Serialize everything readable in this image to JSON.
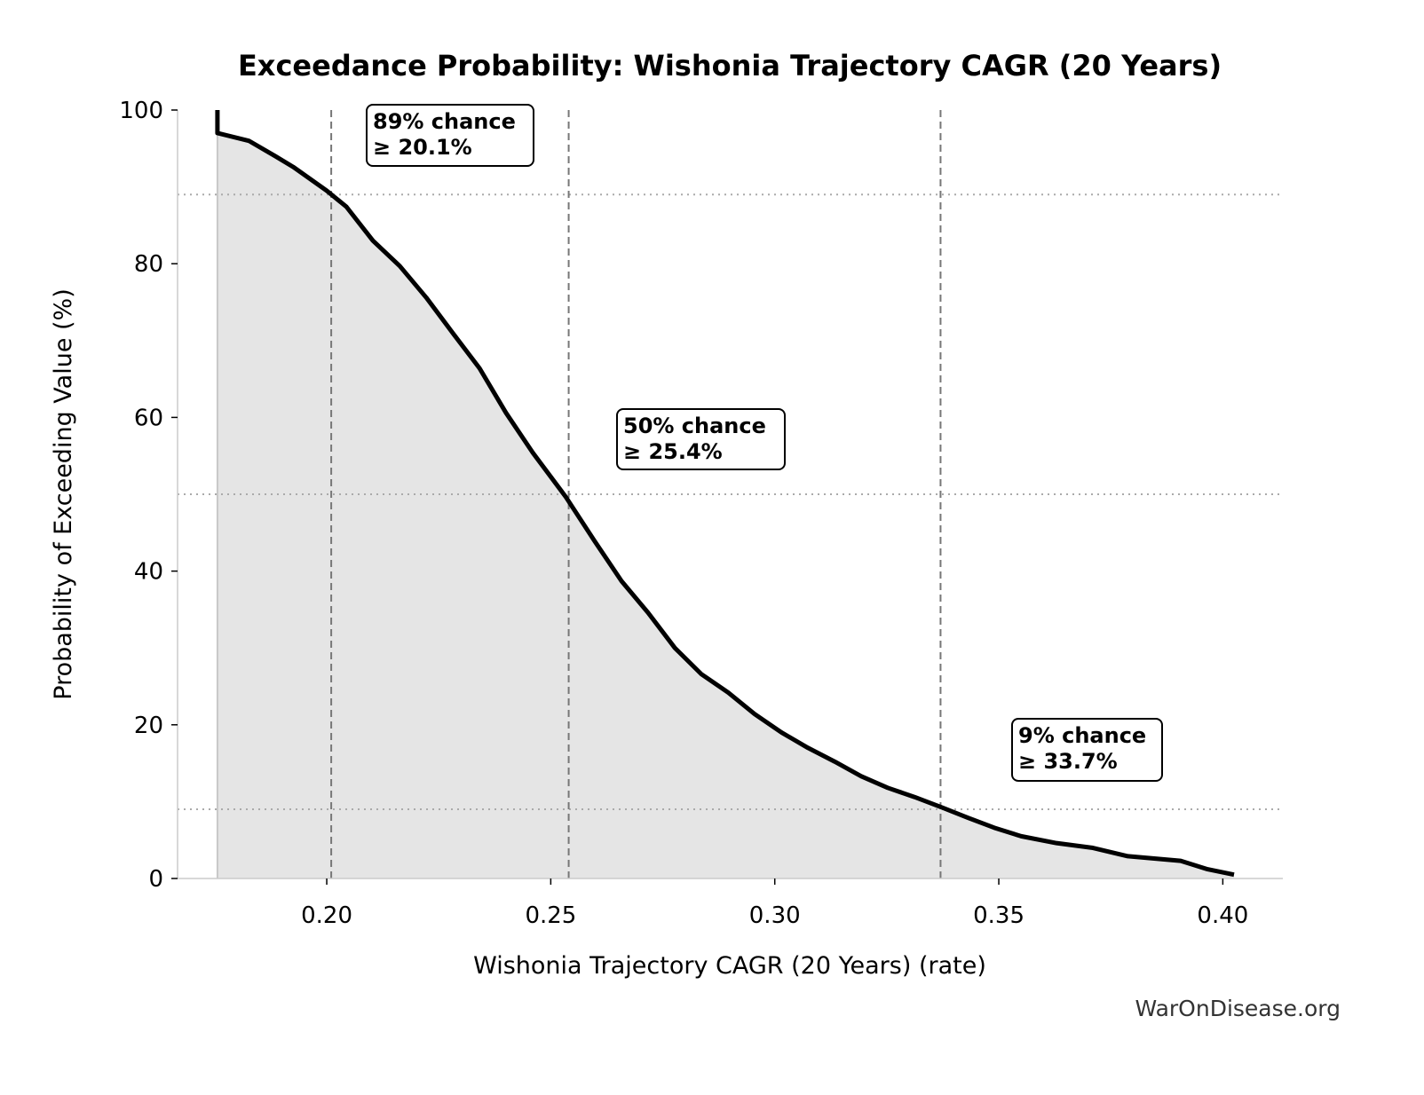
{
  "chart_data": {
    "type": "area",
    "title": "Exceedance Probability: Wishonia Trajectory CAGR (20 Years)",
    "xlabel": "Wishonia Trajectory CAGR (20 Years) (rate)",
    "ylabel": "Probability of Exceeding Value (%)",
    "xlim": [
      0.1667,
      0.4134
    ],
    "ylim": [
      0,
      100
    ],
    "xticks": [
      0.2,
      0.25,
      0.3,
      0.35,
      0.4
    ],
    "xtick_labels": [
      "0.20",
      "0.25",
      "0.30",
      "0.35",
      "0.40"
    ],
    "yticks": [
      0,
      20,
      40,
      60,
      80,
      100
    ],
    "ytick_labels": [
      "0",
      "20",
      "40",
      "60",
      "80",
      "100"
    ],
    "grid": false,
    "series": [
      {
        "x": [
          0.1756,
          0.1756,
          0.1826,
          0.1885,
          0.1925,
          0.2,
          0.2044,
          0.2103,
          0.2163,
          0.2222,
          0.2281,
          0.2341,
          0.24,
          0.246,
          0.2533,
          0.2598,
          0.2658,
          0.2717,
          0.2777,
          0.2836,
          0.2896,
          0.2955,
          0.3015,
          0.3074,
          0.3134,
          0.3193,
          0.3252,
          0.3312,
          0.3375,
          0.3431,
          0.349,
          0.355,
          0.3629,
          0.3708,
          0.3788,
          0.3906,
          0.3966,
          0.4025
        ],
        "y": [
          100,
          97,
          96,
          94,
          92.6,
          89.5,
          87.4,
          83,
          79.7,
          75.6,
          71,
          66.4,
          60.6,
          55.4,
          49.7,
          43.9,
          38.7,
          34.6,
          30,
          26.6,
          24.2,
          21.4,
          19,
          17,
          15.2,
          13.3,
          11.8,
          10.6,
          9.2,
          7.9,
          6.6,
          5.5,
          4.6,
          4,
          2.9,
          2.3,
          1.2,
          0.5
        ]
      }
    ],
    "reference_lines": {
      "vertical": [
        0.201,
        0.254,
        0.337
      ],
      "horizontal": [
        89,
        50,
        9
      ]
    },
    "annotations": [
      {
        "line1": "89% chance",
        "line2": "≥ 20.1%"
      },
      {
        "line1": "50% chance",
        "line2": "≥ 25.4%"
      },
      {
        "line1": "9% chance",
        "line2": "≥ 33.7%"
      }
    ],
    "colors": {
      "line": "#000000",
      "fill": "#e5e5e5",
      "reference": "#777777",
      "spine": "#cccccc"
    }
  },
  "watermark": "WarOnDisease.org"
}
